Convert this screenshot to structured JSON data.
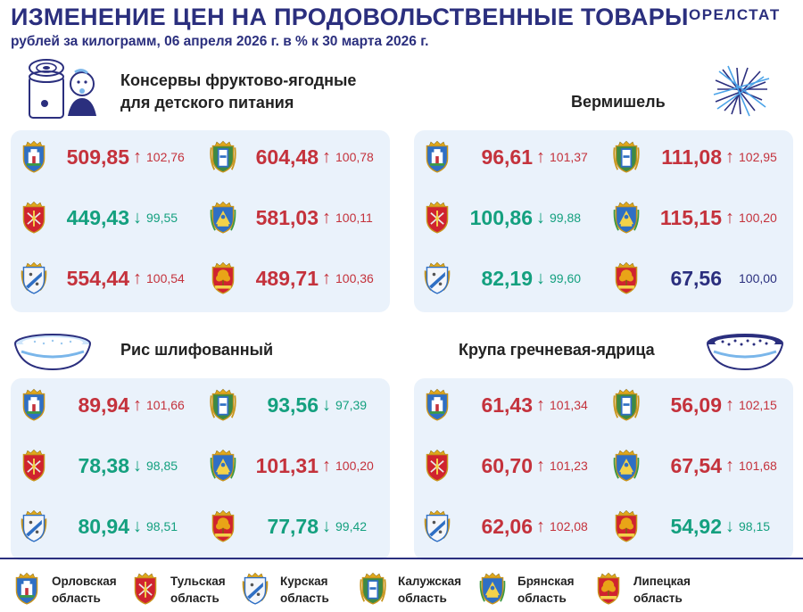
{
  "header": {
    "title": "ИЗМЕНЕНИЕ ЦЕН НА ПРОДОВОЛЬСТВЕННЫЕ ТОВАРЫ",
    "subtitle": "рублей за килограмм, 06 апреля 2026 г. в % к 30 марта 2026 г.",
    "logo": "ОРЕЛСТАТ"
  },
  "colors": {
    "up": "#c4323c",
    "down": "#14a07f",
    "same": "#2b2f7e",
    "panel": "#eaf2fb",
    "brand": "#2b2f7e"
  },
  "products": [
    {
      "name": "Консервы фруктово-ягодные\nдля детского питания",
      "icon": "baby-food-jar-icon",
      "rows": [
        [
          {
            "region": "orel",
            "price": "509,85",
            "trend": "up",
            "index": "102,76"
          },
          {
            "region": "kaluga",
            "price": "604,48",
            "trend": "up",
            "index": "100,78"
          }
        ],
        [
          {
            "region": "tula",
            "price": "449,43",
            "trend": "down",
            "index": "99,55"
          },
          {
            "region": "bryansk",
            "price": "581,03",
            "trend": "up",
            "index": "100,11"
          }
        ],
        [
          {
            "region": "kursk",
            "price": "554,44",
            "trend": "up",
            "index": "100,54"
          },
          {
            "region": "lipetsk",
            "price": "489,71",
            "trend": "up",
            "index": "100,36"
          }
        ]
      ]
    },
    {
      "name": "Вермишель",
      "icon": "vermicelli-icon",
      "rows": [
        [
          {
            "region": "orel",
            "price": "96,61",
            "trend": "up",
            "index": "101,37"
          },
          {
            "region": "kaluga",
            "price": "111,08",
            "trend": "up",
            "index": "102,95"
          }
        ],
        [
          {
            "region": "tula",
            "price": "100,86",
            "trend": "down",
            "index": "99,88"
          },
          {
            "region": "bryansk",
            "price": "115,15",
            "trend": "up",
            "index": "100,20"
          }
        ],
        [
          {
            "region": "kursk",
            "price": "82,19",
            "trend": "down",
            "index": "99,60"
          },
          {
            "region": "lipetsk",
            "price": "67,56",
            "trend": "same",
            "index": "100,00"
          }
        ]
      ]
    },
    {
      "name": "Рис шлифованный",
      "icon": "rice-bowl-icon",
      "rows": [
        [
          {
            "region": "orel",
            "price": "89,94",
            "trend": "up",
            "index": "101,66"
          },
          {
            "region": "kaluga",
            "price": "93,56",
            "trend": "down",
            "index": "97,39"
          }
        ],
        [
          {
            "region": "tula",
            "price": "78,38",
            "trend": "down",
            "index": "98,85"
          },
          {
            "region": "bryansk",
            "price": "101,31",
            "trend": "up",
            "index": "100,20"
          }
        ],
        [
          {
            "region": "kursk",
            "price": "80,94",
            "trend": "down",
            "index": "98,51"
          },
          {
            "region": "lipetsk",
            "price": "77,78",
            "trend": "down",
            "index": "99,42"
          }
        ]
      ]
    },
    {
      "name": "Крупа гречневая-ядрица",
      "icon": "buckwheat-bowl-icon",
      "rows": [
        [
          {
            "region": "orel",
            "price": "61,43",
            "trend": "up",
            "index": "101,34"
          },
          {
            "region": "kaluga",
            "price": "56,09",
            "trend": "up",
            "index": "102,15"
          }
        ],
        [
          {
            "region": "tula",
            "price": "60,70",
            "trend": "up",
            "index": "101,23"
          },
          {
            "region": "bryansk",
            "price": "67,54",
            "trend": "up",
            "index": "101,68"
          }
        ],
        [
          {
            "region": "kursk",
            "price": "62,06",
            "trend": "up",
            "index": "102,08"
          },
          {
            "region": "lipetsk",
            "price": "54,92",
            "trend": "down",
            "index": "98,15"
          }
        ]
      ]
    }
  ],
  "legend": [
    {
      "region": "orel",
      "label": "Орловская\nобласть"
    },
    {
      "region": "tula",
      "label": "Тульская\nобласть"
    },
    {
      "region": "kursk",
      "label": "Курская\nобласть"
    },
    {
      "region": "kaluga",
      "label": "Калужская\nобласть"
    },
    {
      "region": "bryansk",
      "label": "Брянская\nобласть"
    },
    {
      "region": "lipetsk",
      "label": "Липецкая\nобласть"
    }
  ],
  "symbols": {
    "up": "↑",
    "down": "↓",
    "same": ""
  }
}
